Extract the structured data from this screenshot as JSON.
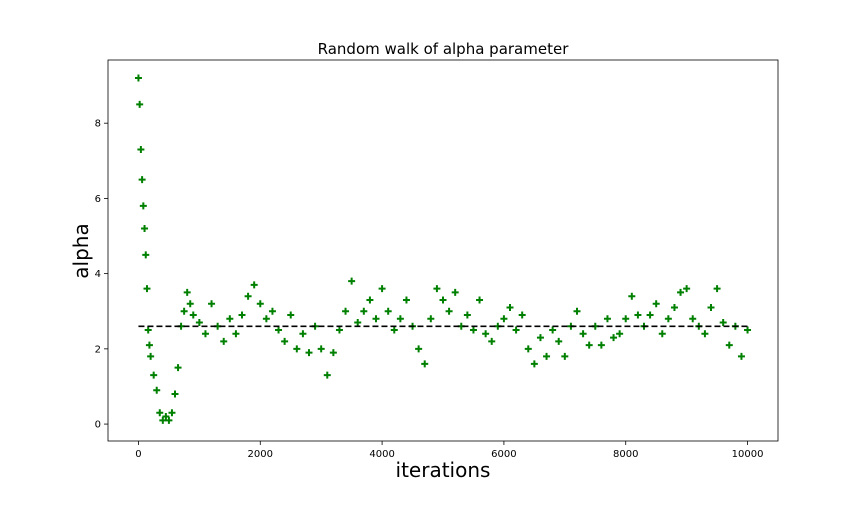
{
  "chart_data": {
    "type": "scatter",
    "title": "Random walk of alpha parameter",
    "x_label": "iterations",
    "y_label": "alpha",
    "marker": "+",
    "color": "#008000",
    "x": [
      0,
      20,
      40,
      60,
      80,
      100,
      120,
      140,
      160,
      180,
      200,
      250,
      300,
      350,
      400,
      450,
      500,
      550,
      600,
      650,
      700,
      750,
      800,
      850,
      900,
      1000,
      1100,
      1200,
      1300,
      1400,
      1500,
      1600,
      1700,
      1800,
      1900,
      2000,
      2100,
      2200,
      2300,
      2400,
      2500,
      2600,
      2700,
      2800,
      2900,
      3000,
      3100,
      3200,
      3300,
      3400,
      3500,
      3600,
      3700,
      3800,
      3900,
      4000,
      4100,
      4200,
      4300,
      4400,
      4500,
      4600,
      4700,
      4800,
      4900,
      5000,
      5100,
      5200,
      5300,
      5400,
      5500,
      5600,
      5700,
      5800,
      5900,
      6000,
      6100,
      6200,
      6300,
      6400,
      6500,
      6600,
      6700,
      6800,
      6900,
      7000,
      7100,
      7200,
      7300,
      7400,
      7500,
      7600,
      7700,
      7800,
      7900,
      8000,
      8100,
      8200,
      8300,
      8400,
      8500,
      8600,
      8700,
      8800,
      8900,
      9000,
      9100,
      9200,
      9300,
      9400,
      9500,
      9600,
      9700,
      9800,
      9900,
      10000
    ],
    "y": [
      9.2,
      8.5,
      7.3,
      6.5,
      5.8,
      5.2,
      4.5,
      3.6,
      2.5,
      2.1,
      1.8,
      1.3,
      0.9,
      0.3,
      0.1,
      0.2,
      0.1,
      0.3,
      0.8,
      1.5,
      2.6,
      3.0,
      3.5,
      3.2,
      2.9,
      2.7,
      2.4,
      3.2,
      2.6,
      2.2,
      2.8,
      2.4,
      2.9,
      3.4,
      3.7,
      3.2,
      2.8,
      3.0,
      2.5,
      2.2,
      2.9,
      2.0,
      2.4,
      1.9,
      2.6,
      2.0,
      1.3,
      1.9,
      2.5,
      3.0,
      3.8,
      2.7,
      3.0,
      3.3,
      2.8,
      3.6,
      3.0,
      2.5,
      2.8,
      3.3,
      2.6,
      2.0,
      1.6,
      2.8,
      3.6,
      3.3,
      3.0,
      3.5,
      2.6,
      2.9,
      2.5,
      3.3,
      2.4,
      2.2,
      2.6,
      2.8,
      3.1,
      2.5,
      2.9,
      2.0,
      1.6,
      2.3,
      1.8,
      2.5,
      2.2,
      1.8,
      2.6,
      3.0,
      2.4,
      2.1,
      2.6,
      2.1,
      2.8,
      2.3,
      2.4,
      2.8,
      3.4,
      2.9,
      2.6,
      2.9,
      3.2,
      2.4,
      2.8,
      3.1,
      3.5,
      3.6,
      2.8,
      2.6,
      2.4,
      3.1,
      3.6,
      2.7,
      2.1,
      2.6,
      1.8,
      2.5
    ],
    "reference_line": {
      "x": [
        0,
        10000
      ],
      "y": [
        2.6,
        2.6
      ],
      "color": "#000000",
      "dashed": true
    },
    "xlim": [
      -500,
      10500
    ],
    "ylim": [
      -0.45,
      9.68
    ],
    "xticks": [
      0,
      2000,
      4000,
      6000,
      8000,
      10000
    ],
    "yticks": [
      0,
      2,
      4,
      6,
      8
    ],
    "grid": false
  }
}
